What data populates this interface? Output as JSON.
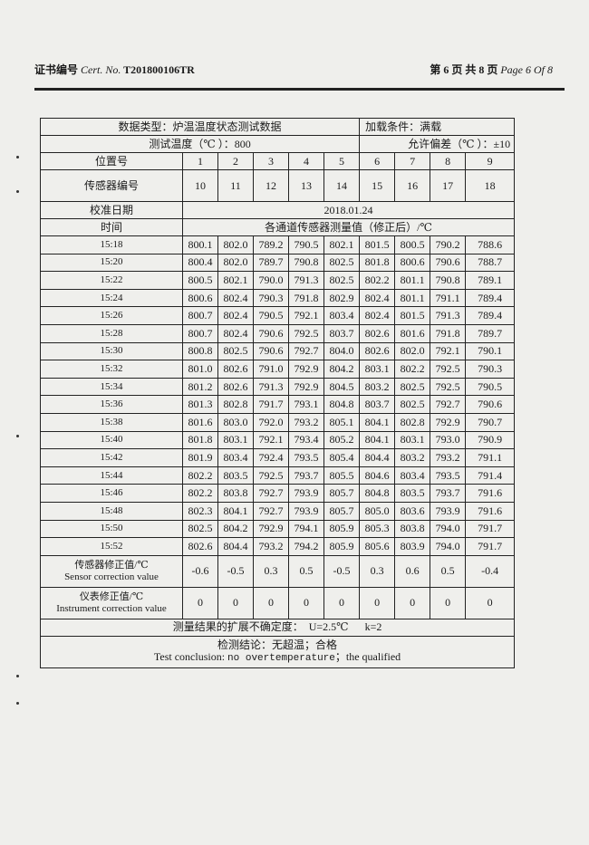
{
  "header": {
    "cert_label_cn": "证书编号",
    "cert_label_en": "Cert. No.",
    "cert_no": "T201800106TR",
    "page_cn": "第 6 页 共 8 页",
    "page_en": "Page 6 Of 8"
  },
  "table": {
    "data_type": "数据类型：炉温温度状态测试数据",
    "load_condition": "加载条件：满载",
    "test_temp": "测试温度（℃ ）：800",
    "tolerance": "允许偏差（℃ ）：±10",
    "position_label": "位置号",
    "positions": [
      "1",
      "2",
      "3",
      "4",
      "5",
      "6",
      "7",
      "8",
      "9"
    ],
    "sensor_label": "传感器编号",
    "sensors": [
      "10",
      "11",
      "12",
      "13",
      "14",
      "15",
      "16",
      "17",
      "18"
    ],
    "calib_date_label": "校准日期",
    "calib_date": "2018.01.24",
    "time_label": "时间",
    "measure_label": "各通道传感器测量值（修正后）/℃",
    "rows": [
      {
        "time": "15:18",
        "values": [
          "800.1",
          "802.0",
          "789.2",
          "790.5",
          "802.1",
          "801.5",
          "800.5",
          "790.2",
          "788.6"
        ]
      },
      {
        "time": "15:20",
        "values": [
          "800.4",
          "802.0",
          "789.7",
          "790.8",
          "802.5",
          "801.8",
          "800.6",
          "790.6",
          "788.7"
        ]
      },
      {
        "time": "15:22",
        "values": [
          "800.5",
          "802.1",
          "790.0",
          "791.3",
          "802.5",
          "802.2",
          "801.1",
          "790.8",
          "789.1"
        ]
      },
      {
        "time": "15:24",
        "values": [
          "800.6",
          "802.4",
          "790.3",
          "791.8",
          "802.9",
          "802.4",
          "801.1",
          "791.1",
          "789.4"
        ]
      },
      {
        "time": "15:26",
        "values": [
          "800.7",
          "802.4",
          "790.5",
          "792.1",
          "803.4",
          "802.4",
          "801.5",
          "791.3",
          "789.4"
        ]
      },
      {
        "time": "15:28",
        "values": [
          "800.7",
          "802.4",
          "790.6",
          "792.5",
          "803.7",
          "802.6",
          "801.6",
          "791.8",
          "789.7"
        ]
      },
      {
        "time": "15:30",
        "values": [
          "800.8",
          "802.5",
          "790.6",
          "792.7",
          "804.0",
          "802.6",
          "802.0",
          "792.1",
          "790.1"
        ]
      },
      {
        "time": "15:32",
        "values": [
          "801.0",
          "802.6",
          "791.0",
          "792.9",
          "804.2",
          "803.1",
          "802.2",
          "792.5",
          "790.3"
        ]
      },
      {
        "time": "15:34",
        "values": [
          "801.2",
          "802.6",
          "791.3",
          "792.9",
          "804.5",
          "803.2",
          "802.5",
          "792.5",
          "790.5"
        ]
      },
      {
        "time": "15:36",
        "values": [
          "801.3",
          "802.8",
          "791.7",
          "793.1",
          "804.8",
          "803.7",
          "802.5",
          "792.7",
          "790.6"
        ]
      },
      {
        "time": "15:38",
        "values": [
          "801.6",
          "803.0",
          "792.0",
          "793.2",
          "805.1",
          "804.1",
          "802.8",
          "792.9",
          "790.7"
        ]
      },
      {
        "time": "15:40",
        "values": [
          "801.8",
          "803.1",
          "792.1",
          "793.4",
          "805.2",
          "804.1",
          "803.1",
          "793.0",
          "790.9"
        ]
      },
      {
        "time": "15:42",
        "values": [
          "801.9",
          "803.4",
          "792.4",
          "793.5",
          "805.4",
          "804.4",
          "803.2",
          "793.2",
          "791.1"
        ]
      },
      {
        "time": "15:44",
        "values": [
          "802.2",
          "803.5",
          "792.5",
          "793.7",
          "805.5",
          "804.6",
          "803.4",
          "793.5",
          "791.4"
        ]
      },
      {
        "time": "15:46",
        "values": [
          "802.2",
          "803.8",
          "792.7",
          "793.9",
          "805.7",
          "804.8",
          "803.5",
          "793.7",
          "791.6"
        ]
      },
      {
        "time": "15:48",
        "values": [
          "802.3",
          "804.1",
          "792.7",
          "793.9",
          "805.7",
          "805.0",
          "803.6",
          "793.9",
          "791.6"
        ]
      },
      {
        "time": "15:50",
        "values": [
          "802.5",
          "804.2",
          "792.9",
          "794.1",
          "805.9",
          "805.3",
          "803.8",
          "794.0",
          "791.7"
        ]
      },
      {
        "time": "15:52",
        "values": [
          "802.6",
          "804.4",
          "793.2",
          "794.2",
          "805.9",
          "805.6",
          "803.9",
          "794.0",
          "791.7"
        ]
      }
    ],
    "sensor_corr_cn": "传感器修正值/℃",
    "sensor_corr_en": "Sensor correction value",
    "sensor_corr": [
      "-0.6",
      "-0.5",
      "0.3",
      "0.5",
      "-0.5",
      "0.3",
      "0.6",
      "0.5",
      "-0.4"
    ],
    "instr_corr_cn": "仪表修正值/℃",
    "instr_corr_en": "Instrument correction value",
    "instr_corr": [
      "0",
      "0",
      "0",
      "0",
      "0",
      "0",
      "0",
      "0",
      "0"
    ],
    "uncertainty": "测量结果的扩展不确定度：  U=2.5℃      k=2",
    "conclusion_cn": "检测结论：无超温；合格",
    "conclusion_en_a": "Test conclusion: ",
    "conclusion_en_b": "no overtemperature",
    "conclusion_en_c": "；the qualified"
  }
}
